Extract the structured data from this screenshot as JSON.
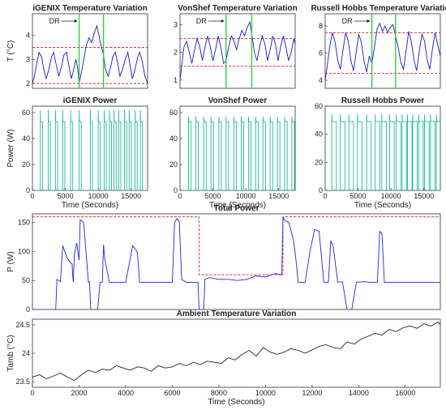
{
  "colors": {
    "temp": "#1a1ac8",
    "power": "#1bbf95",
    "total": "#2424e0",
    "ambient": "#222222",
    "limit": "#e03030",
    "dr": "#2fd23a"
  },
  "chart_data": [
    {
      "id": "igenix-temp",
      "type": "line",
      "title": "iGENIX Temperature Variation",
      "ylabel": "T (°C)",
      "xlabel": "",
      "xlim": [
        0,
        17500
      ],
      "ylim": [
        1.8,
        4.9
      ],
      "yticks": [
        2,
        3,
        4
      ],
      "xticks": [],
      "limits": [
        2.0,
        3.5
      ],
      "dr": [
        7100,
        10800
      ],
      "annotation": "DR",
      "series": [
        {
          "x": [
            0,
            300,
            700,
            1000,
            1400,
            1700,
            2100,
            2500,
            2900,
            3200,
            3600,
            4000,
            4400,
            4800,
            5200,
            5500,
            5900,
            6200,
            6600,
            6900,
            7100,
            7400,
            7800,
            8200,
            8600,
            9000,
            9400,
            9800,
            10100,
            10400,
            10800,
            11100,
            11500,
            11900,
            12200,
            12600,
            13000,
            13300,
            13700,
            14100,
            14500,
            14800,
            15200,
            15600,
            16000,
            16300,
            16700,
            17100,
            17500
          ],
          "y": [
            2.0,
            2.3,
            2.9,
            3.3,
            3.1,
            2.6,
            2.2,
            2.6,
            3.1,
            3.3,
            2.8,
            2.3,
            2.7,
            3.2,
            3.3,
            2.8,
            2.2,
            2.5,
            3.0,
            2.6,
            2.0,
            2.4,
            3.0,
            3.6,
            3.9,
            3.7,
            4.1,
            4.4,
            4.0,
            3.6,
            3.2,
            2.6,
            2.3,
            2.7,
            3.1,
            3.3,
            2.8,
            2.3,
            2.6,
            3.0,
            3.3,
            2.8,
            2.2,
            2.6,
            3.1,
            3.3,
            2.9,
            2.3,
            2.0
          ]
        }
      ]
    },
    {
      "id": "vonshef-temp",
      "type": "line",
      "title": "VonShef Temperature Variation",
      "ylabel": "",
      "xlabel": "",
      "xlim": [
        0,
        17500
      ],
      "ylim": [
        0.7,
        3.4
      ],
      "yticks": [
        1,
        2,
        3
      ],
      "xticks": [],
      "limits": [
        1.5,
        2.5
      ],
      "dr": [
        7000,
        10900
      ],
      "annotation": "DR",
      "series": [
        {
          "x": [
            0,
            300,
            600,
            1000,
            1400,
            1800,
            2200,
            2600,
            3000,
            3400,
            3800,
            4200,
            4600,
            5000,
            5400,
            5800,
            6200,
            6600,
            7000,
            7400,
            7800,
            8200,
            8600,
            9000,
            9400,
            9800,
            10200,
            10600,
            10900,
            11300,
            11700,
            12100,
            12500,
            12900,
            13300,
            13700,
            14100,
            14500,
            14900,
            15300,
            15700,
            16100,
            16500,
            16900,
            17300,
            17500
          ],
          "y": [
            1.0,
            1.6,
            2.2,
            2.4,
            2.0,
            1.6,
            2.1,
            2.5,
            2.2,
            1.7,
            2.2,
            2.6,
            2.2,
            1.7,
            2.1,
            2.6,
            2.2,
            1.6,
            1.7,
            2.2,
            2.6,
            2.4,
            2.1,
            2.5,
            2.8,
            2.6,
            2.9,
            3.1,
            2.7,
            2.0,
            1.7,
            2.2,
            2.6,
            2.3,
            1.7,
            2.1,
            2.6,
            2.3,
            1.7,
            2.2,
            2.6,
            2.2,
            1.7,
            2.0,
            2.5,
            2.3
          ]
        }
      ]
    },
    {
      "id": "russell-temp",
      "type": "line",
      "title": "Russell Hobbs Temperature Variation",
      "ylabel": "",
      "xlabel": "",
      "xlim": [
        0,
        17500
      ],
      "ylim": [
        3.4,
        8.9
      ],
      "yticks": [
        4,
        6,
        8
      ],
      "xticks": [],
      "limits": [
        4.5,
        7.5
      ],
      "dr": [
        7100,
        10700
      ],
      "annotation": "DR",
      "series": [
        {
          "x": [
            0,
            300,
            700,
            1100,
            1500,
            1900,
            2300,
            2700,
            3100,
            3500,
            3900,
            4300,
            4700,
            5100,
            5500,
            5900,
            6300,
            6700,
            7100,
            7500,
            7900,
            8300,
            8700,
            9100,
            9500,
            9900,
            10300,
            10700,
            11100,
            11500,
            11900,
            12300,
            12700,
            13100,
            13500,
            13900,
            14300,
            14700,
            15100,
            15500,
            15900,
            16300,
            16700,
            17100,
            17500
          ],
          "y": [
            4.0,
            5.0,
            6.5,
            7.5,
            6.8,
            5.5,
            4.8,
            6.2,
            7.5,
            6.9,
            5.5,
            4.7,
            6.0,
            7.4,
            6.8,
            5.4,
            4.6,
            5.8,
            5.2,
            6.5,
            7.8,
            8.2,
            7.6,
            8.0,
            7.5,
            7.9,
            8.1,
            7.3,
            6.4,
            5.3,
            4.8,
            6.2,
            7.6,
            6.8,
            5.5,
            4.7,
            6.1,
            7.4,
            6.9,
            5.5,
            4.8,
            6.3,
            7.5,
            6.6,
            5.8
          ]
        }
      ]
    },
    {
      "id": "igenix-power",
      "type": "line",
      "title": "iGENIX Power",
      "ylabel": "Power (W)",
      "xlabel": "Time (Seconds)",
      "xlim": [
        0,
        17500
      ],
      "ylim": [
        0,
        65
      ],
      "yticks": [
        0,
        20,
        40,
        60
      ],
      "xticks": [
        0,
        5000,
        10000,
        15000
      ],
      "pulses": {
        "peak": 62,
        "level": 53,
        "starts": [
          1200,
          2400,
          3500,
          4600,
          5800,
          7100,
          8800,
          10000,
          10900,
          11700,
          12400,
          13100,
          14000,
          14700,
          15600,
          16400
        ],
        "width": 320
      }
    },
    {
      "id": "vonshef-power",
      "type": "line",
      "title": "VonShef Power",
      "ylabel": "",
      "xlabel": "Time (Seconds)",
      "xlim": [
        0,
        17500
      ],
      "ylim": [
        0,
        65
      ],
      "yticks": [
        0,
        20,
        40,
        60
      ],
      "xticks": [
        0,
        5000,
        10000,
        15000
      ],
      "pulses": {
        "peak": 57,
        "level": 53,
        "starts": [
          1300,
          2400,
          3600,
          4700,
          5900,
          7000,
          8200,
          9300,
          10400,
          11500,
          12600,
          13700,
          14800,
          15900,
          17000
        ],
        "width": 380
      }
    },
    {
      "id": "russell-power",
      "type": "line",
      "title": "Russell Hobbs Power",
      "ylabel": "",
      "xlabel": "Time (Seconds)",
      "xlim": [
        0,
        17500
      ],
      "ylim": [
        0,
        60
      ],
      "yticks": [
        0,
        20,
        40,
        60
      ],
      "xticks": [
        0,
        5000,
        10000,
        15000
      ],
      "pulses": {
        "peak": 54,
        "level": 49,
        "starts": [
          1000,
          2300,
          3600,
          4900,
          6300,
          7600,
          8600,
          9800,
          10800,
          11700,
          12500,
          13300,
          14200,
          15100,
          16000,
          16900
        ],
        "width": 700
      }
    },
    {
      "id": "total-power",
      "type": "line",
      "title": "Total Power",
      "ylabel": "P (W)",
      "xlabel": "",
      "xlim": [
        0,
        17500
      ],
      "ylim": [
        0,
        165
      ],
      "yticks": [
        0,
        50,
        100,
        150
      ],
      "xticks": [],
      "limit_steps": {
        "x": [
          0,
          7150,
          7150,
          10750,
          10750,
          17500
        ],
        "y": [
          160,
          160,
          60,
          60,
          160,
          160
        ]
      },
      "series": [
        {
          "x": [
            0,
            800,
            1000,
            1050,
            1200,
            1300,
            1500,
            1700,
            1750,
            1800,
            1900,
            2000,
            2050,
            2200,
            2400,
            2450,
            2500,
            2800,
            2900,
            3000,
            3050,
            3100,
            3300,
            3800,
            4000,
            4300,
            4500,
            4600,
            4700,
            5000,
            5500,
            5800,
            5900,
            6000,
            6100,
            6200,
            6300,
            6400,
            6600,
            6900,
            7000,
            7100,
            7150,
            7200,
            7350,
            7400,
            7600,
            8000,
            8400,
            8800,
            9200,
            9600,
            10000,
            10400,
            10700,
            10750,
            10800,
            11000,
            11200,
            11300,
            11400,
            11500,
            11700,
            11900,
            12100,
            12300,
            12500,
            12600,
            12700,
            12800,
            12900,
            13100,
            13300,
            13500,
            13700,
            13900,
            14200,
            14500,
            14800,
            14900,
            15000,
            15100,
            15300,
            15600,
            15900,
            16100,
            16300,
            16500,
            16900,
            17100,
            17400,
            17500
          ],
          "y": [
            0,
            0,
            0,
            52,
            48,
            110,
            88,
            78,
            47,
            95,
            115,
            85,
            155,
            150,
            47,
            48,
            0,
            0,
            47,
            47,
            112,
            88,
            47,
            47,
            47,
            110,
            100,
            47,
            47,
            47,
            47,
            47,
            47,
            47,
            150,
            157,
            152,
            52,
            47,
            47,
            47,
            47,
            0,
            0,
            0,
            52,
            55,
            52,
            52,
            50,
            52,
            58,
            56,
            62,
            60,
            160,
            155,
            150,
            120,
            88,
            47,
            47,
            47,
            98,
            138,
            135,
            47,
            47,
            47,
            118,
            110,
            47,
            48,
            0,
            0,
            47,
            48,
            47,
            47,
            135,
            130,
            47,
            47,
            47,
            47,
            47,
            47,
            47,
            47,
            47,
            47,
            47
          ]
        }
      ]
    },
    {
      "id": "ambient-temp",
      "type": "line",
      "title": "Ambient Temperature Variation",
      "ylabel": "Tamb (°C)",
      "xlabel": "Time (Seconds)",
      "xlim": [
        0,
        17500
      ],
      "ylim": [
        23.4,
        24.6
      ],
      "yticks": [
        23.5,
        24,
        24.5
      ],
      "xticks": [
        0,
        2000,
        4000,
        6000,
        8000,
        10000,
        12000,
        14000,
        16000
      ],
      "series": [
        {
          "x": [
            0,
            300,
            600,
            900,
            1200,
            1500,
            1800,
            2100,
            2400,
            2700,
            3000,
            3300,
            3600,
            3900,
            4200,
            4500,
            4800,
            5100,
            5400,
            5700,
            6000,
            6300,
            6600,
            6900,
            7200,
            7500,
            7800,
            8100,
            8400,
            8700,
            9000,
            9300,
            9600,
            9900,
            10200,
            10500,
            10800,
            11100,
            11400,
            11700,
            12000,
            12300,
            12600,
            12900,
            13200,
            13500,
            13800,
            14100,
            14400,
            14700,
            15000,
            15300,
            15600,
            15900,
            16200,
            16500,
            16800,
            17100,
            17400,
            17500
          ],
          "y": [
            23.58,
            23.62,
            23.55,
            23.6,
            23.65,
            23.58,
            23.52,
            23.62,
            23.7,
            23.66,
            23.72,
            23.7,
            23.78,
            23.74,
            23.7,
            23.76,
            23.74,
            23.68,
            23.78,
            23.74,
            23.76,
            23.82,
            23.78,
            23.84,
            23.8,
            23.86,
            23.84,
            23.82,
            23.92,
            23.88,
            23.98,
            24.05,
            23.95,
            24.1,
            24.02,
            23.98,
            24.02,
            24.08,
            24.05,
            24.0,
            24.06,
            24.12,
            24.15,
            24.1,
            24.08,
            24.2,
            24.16,
            24.25,
            24.3,
            24.35,
            24.32,
            24.42,
            24.38,
            24.45,
            24.48,
            24.44,
            24.52,
            24.48,
            24.55,
            24.5
          ]
        }
      ]
    }
  ]
}
